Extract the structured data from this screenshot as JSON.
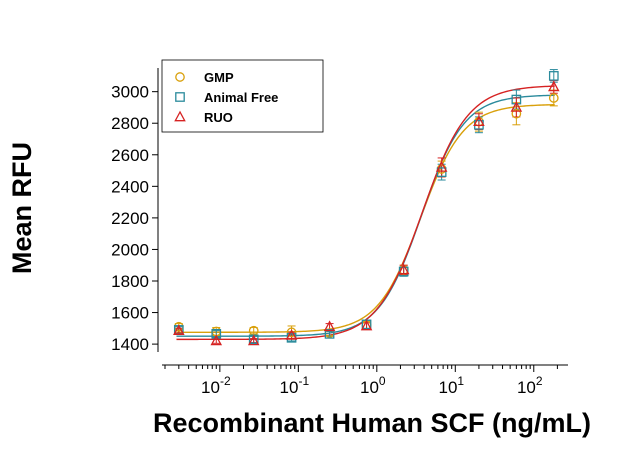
{
  "chart_data": {
    "type": "scatter",
    "title": "",
    "xlabel": "Recombinant Human SCF (ng/mL)",
    "ylabel": "Mean RFU",
    "xscale": "log",
    "xlim": [
      0.002,
      250
    ],
    "ylim": [
      1350,
      3150
    ],
    "x_ticks": [
      {
        "value": 0.01,
        "base": "10",
        "exp": "-2"
      },
      {
        "value": 0.1,
        "base": "10",
        "exp": "-1"
      },
      {
        "value": 1,
        "base": "10",
        "exp": "0"
      },
      {
        "value": 10,
        "base": "10",
        "exp": "1"
      },
      {
        "value": 100,
        "base": "10",
        "exp": "2"
      }
    ],
    "y_ticks": [
      {
        "value": 1400,
        "label": "1400"
      },
      {
        "value": 1600,
        "label": "1600"
      },
      {
        "value": 1800,
        "label": "1800"
      },
      {
        "value": 2000,
        "label": "2000"
      },
      {
        "value": 2200,
        "label": "2200"
      },
      {
        "value": 2400,
        "label": "2400"
      },
      {
        "value": 2600,
        "label": "2600"
      },
      {
        "value": 2800,
        "label": "2800"
      },
      {
        "value": 3000,
        "label": "3000"
      }
    ],
    "legend_position": "top-left",
    "series": [
      {
        "name": "GMP",
        "marker": "circle",
        "color": "#d9a00b",
        "x": [
          0.003,
          0.009,
          0.027,
          0.082,
          0.25,
          0.74,
          2.2,
          6.7,
          20,
          60,
          180
        ],
        "y": [
          1510,
          1480,
          1485,
          1475,
          1470,
          1520,
          1870,
          2510,
          2810,
          2860,
          2960
        ],
        "err": [
          20,
          25,
          20,
          40,
          15,
          25,
          30,
          50,
          60,
          70,
          50
        ],
        "fit": {
          "bottom": 1475,
          "top": 2920,
          "ec50": 3.6,
          "hill": 1.6
        }
      },
      {
        "name": "Animal Free",
        "marker": "square",
        "color": "#2a8a9c",
        "x": [
          0.003,
          0.009,
          0.027,
          0.082,
          0.25,
          0.74,
          2.2,
          6.7,
          20,
          60,
          180
        ],
        "y": [
          1490,
          1465,
          1430,
          1440,
          1465,
          1525,
          1860,
          2490,
          2790,
          2950,
          3100
        ],
        "err": [
          20,
          20,
          20,
          20,
          15,
          25,
          30,
          50,
          50,
          60,
          40
        ],
        "fit": {
          "bottom": 1450,
          "top": 2980,
          "ec50": 3.7,
          "hill": 1.6
        }
      },
      {
        "name": "RUO",
        "marker": "triangle",
        "color": "#d62222",
        "x": [
          0.003,
          0.009,
          0.027,
          0.082,
          0.25,
          0.74,
          2.2,
          6.7,
          20,
          60,
          180
        ],
        "y": [
          1485,
          1420,
          1420,
          1455,
          1510,
          1515,
          1870,
          2520,
          2810,
          2900,
          3030
        ],
        "err": [
          15,
          15,
          15,
          20,
          20,
          20,
          30,
          60,
          50,
          60,
          40
        ],
        "fit": {
          "bottom": 1430,
          "top": 3040,
          "ec50": 3.8,
          "hill": 1.5
        }
      }
    ]
  }
}
